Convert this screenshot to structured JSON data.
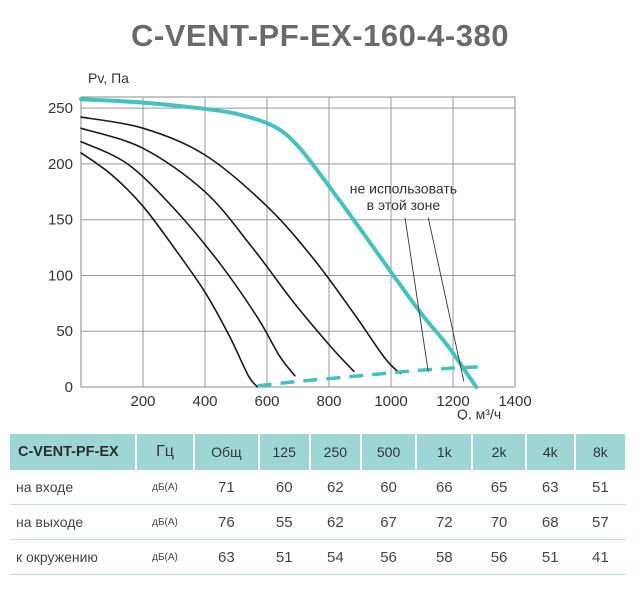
{
  "title": "C-VENT-PF-EX-160-4-380",
  "chart_data": {
    "type": "line",
    "title": "C-VENT-PF-EX-160-4-380",
    "xlabel": "Q, м³/ч",
    "ylabel": "Pv, Па",
    "xlim": [
      0,
      1400
    ],
    "ylim": [
      0,
      260
    ],
    "x_ticks": [
      "200",
      "400",
      "600",
      "800",
      "1000",
      "1200",
      "1400"
    ],
    "y_ticks": [
      "0",
      "50",
      "100",
      "150",
      "200",
      "250"
    ],
    "grid": true,
    "series": [
      {
        "style": "thin",
        "color": "#1a1a1a",
        "points": [
          [
            0,
            210
          ],
          [
            100,
            190
          ],
          [
            200,
            162
          ],
          [
            300,
            125
          ],
          [
            400,
            85
          ],
          [
            480,
            45
          ],
          [
            540,
            10
          ],
          [
            570,
            0
          ]
        ]
      },
      {
        "style": "thin",
        "color": "#1a1a1a",
        "points": [
          [
            0,
            220
          ],
          [
            150,
            200
          ],
          [
            300,
            160
          ],
          [
            450,
            110
          ],
          [
            570,
            62
          ],
          [
            640,
            28
          ],
          [
            690,
            10
          ]
        ]
      },
      {
        "style": "thin",
        "color": "#1a1a1a",
        "points": [
          [
            0,
            232
          ],
          [
            200,
            214
          ],
          [
            400,
            175
          ],
          [
            550,
            126
          ],
          [
            680,
            78
          ],
          [
            800,
            38
          ],
          [
            880,
            14
          ]
        ]
      },
      {
        "style": "thin",
        "color": "#1a1a1a",
        "points": [
          [
            0,
            242
          ],
          [
            200,
            232
          ],
          [
            400,
            208
          ],
          [
            600,
            162
          ],
          [
            750,
            115
          ],
          [
            880,
            66
          ],
          [
            980,
            26
          ],
          [
            1030,
            12
          ]
        ]
      },
      {
        "style": "thick",
        "color": "#45c1c0",
        "points": [
          [
            0,
            258
          ],
          [
            200,
            255
          ],
          [
            380,
            250
          ],
          [
            500,
            245
          ],
          [
            620,
            234
          ],
          [
            700,
            216
          ],
          [
            800,
            180
          ],
          [
            900,
            142
          ],
          [
            1000,
            103
          ],
          [
            1100,
            65
          ],
          [
            1180,
            38
          ],
          [
            1250,
            10
          ],
          [
            1275,
            0
          ]
        ]
      },
      {
        "style": "dashed",
        "color": "#45c1c0",
        "points": [
          [
            570,
            1
          ],
          [
            700,
            5
          ],
          [
            900,
            10
          ],
          [
            1050,
            14
          ],
          [
            1200,
            17
          ],
          [
            1280,
            18
          ]
        ]
      }
    ],
    "annotations": [
      {
        "text": "не использовать",
        "x": 1040,
        "y": 178
      },
      {
        "text": "в этой зоне",
        "x": 1040,
        "y": 163
      }
    ]
  },
  "table": {
    "header": [
      "C-VENT-PF-EX",
      "Гц",
      "Общ",
      "125",
      "250",
      "500",
      "1k",
      "2k",
      "4k",
      "8k"
    ],
    "rows": [
      {
        "label": "на входе",
        "unit": "дБ(А)",
        "values": [
          "71",
          "60",
          "62",
          "60",
          "66",
          "65",
          "63",
          "51"
        ]
      },
      {
        "label": "на выходе",
        "unit": "дБ(А)",
        "values": [
          "76",
          "55",
          "62",
          "67",
          "72",
          "70",
          "68",
          "57"
        ]
      },
      {
        "label": "к окружению",
        "unit": "дБ(А)",
        "values": [
          "63",
          "51",
          "54",
          "56",
          "58",
          "56",
          "51",
          "41"
        ]
      }
    ]
  }
}
